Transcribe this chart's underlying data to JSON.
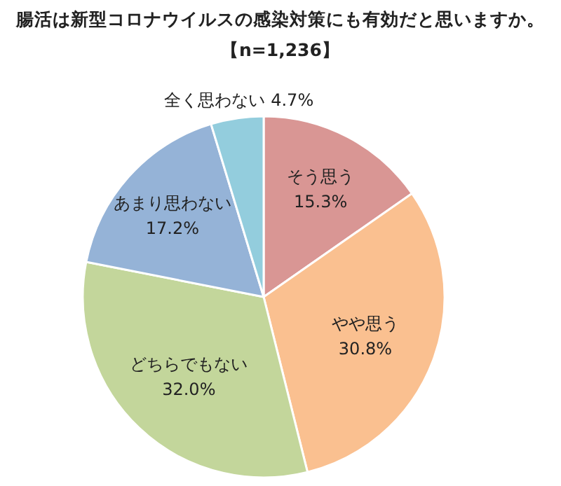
{
  "chart_data": {
    "type": "pie",
    "title": "腸活は新型コロナウイルスの感染対策にも有効だと思いますか。",
    "subtitle": "【n=1,236】",
    "categories": [
      "そう思う",
      "やや思う",
      "どちらでもない",
      "あまり思わない",
      "全く思わない"
    ],
    "values": [
      15.3,
      30.8,
      32.0,
      17.2,
      4.7
    ],
    "colors": [
      "#d99694",
      "#fac090",
      "#c3d69b",
      "#95b3d7",
      "#93cddd"
    ],
    "value_labels": [
      "15.3%",
      "30.8%",
      "32.0%",
      "17.2%",
      "4.7%"
    ]
  }
}
